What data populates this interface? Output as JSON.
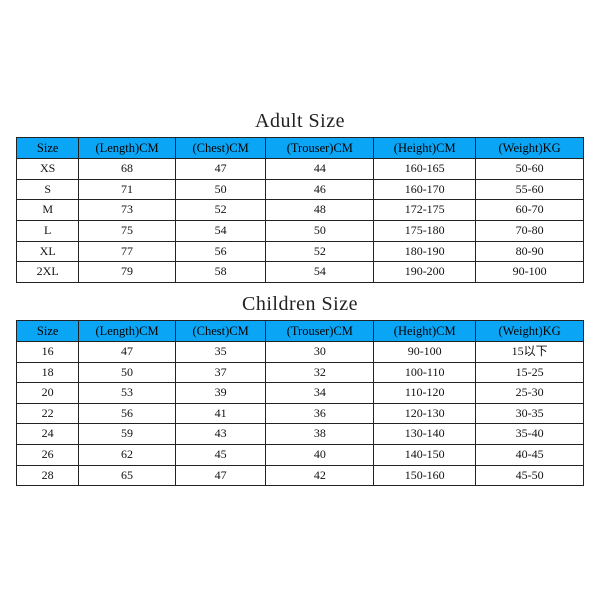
{
  "colors": {
    "header_bg": "#0aa6f5",
    "border": "#222222",
    "background": "#ffffff",
    "text": "#111111"
  },
  "typography": {
    "title_fontsize": 20,
    "header_fontsize": 12,
    "cell_fontsize": 12,
    "family": "Times New Roman"
  },
  "columns": [
    {
      "key": "size",
      "label": "Size",
      "width": "11%"
    },
    {
      "key": "length",
      "label": "(Length)CM",
      "width": "17%"
    },
    {
      "key": "chest",
      "label": "(Chest)CM",
      "width": "16%"
    },
    {
      "key": "trouser",
      "label": "(Trouser)CM",
      "width": "19%"
    },
    {
      "key": "height",
      "label": "(Height)CM",
      "width": "18%"
    },
    {
      "key": "weight",
      "label": "(Weight)KG",
      "width": "19%"
    }
  ],
  "adult": {
    "title": "Adult Size",
    "rows": [
      {
        "size": "XS",
        "length": "68",
        "chest": "47",
        "trouser": "44",
        "height": "160-165",
        "weight": "50-60"
      },
      {
        "size": "S",
        "length": "71",
        "chest": "50",
        "trouser": "46",
        "height": "160-170",
        "weight": "55-60"
      },
      {
        "size": "M",
        "length": "73",
        "chest": "52",
        "trouser": "48",
        "height": "172-175",
        "weight": "60-70"
      },
      {
        "size": "L",
        "length": "75",
        "chest": "54",
        "trouser": "50",
        "height": "175-180",
        "weight": "70-80"
      },
      {
        "size": "XL",
        "length": "77",
        "chest": "56",
        "trouser": "52",
        "height": "180-190",
        "weight": "80-90"
      },
      {
        "size": "2XL",
        "length": "79",
        "chest": "58",
        "trouser": "54",
        "height": "190-200",
        "weight": "90-100"
      }
    ]
  },
  "children": {
    "title": "Children Size",
    "rows": [
      {
        "size": "16",
        "length": "47",
        "chest": "35",
        "trouser": "30",
        "height": "90-100",
        "weight": "15以下"
      },
      {
        "size": "18",
        "length": "50",
        "chest": "37",
        "trouser": "32",
        "height": "100-110",
        "weight": "15-25"
      },
      {
        "size": "20",
        "length": "53",
        "chest": "39",
        "trouser": "34",
        "height": "110-120",
        "weight": "25-30"
      },
      {
        "size": "22",
        "length": "56",
        "chest": "41",
        "trouser": "36",
        "height": "120-130",
        "weight": "30-35"
      },
      {
        "size": "24",
        "length": "59",
        "chest": "43",
        "trouser": "38",
        "height": "130-140",
        "weight": "35-40"
      },
      {
        "size": "26",
        "length": "62",
        "chest": "45",
        "trouser": "40",
        "height": "140-150",
        "weight": "40-45"
      },
      {
        "size": "28",
        "length": "65",
        "chest": "47",
        "trouser": "42",
        "height": "150-160",
        "weight": "45-50"
      }
    ]
  }
}
